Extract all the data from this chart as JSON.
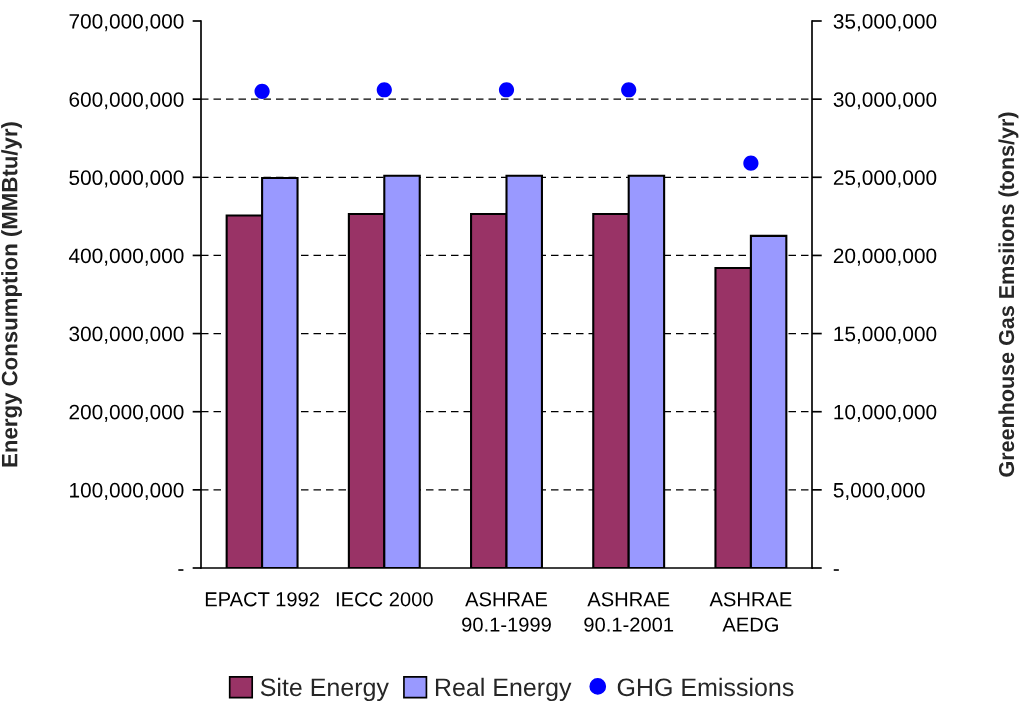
{
  "chart_data": {
    "type": "bar",
    "categories": [
      "EPACT 1992",
      "IECC 2000",
      "ASHRAE\n90.1-1999",
      "ASHRAE\n90.1-2001",
      "ASHRAE\nAEDG"
    ],
    "series": [
      {
        "name": "Site Energy",
        "color": "#993366",
        "values": [
          451000000,
          453000000,
          453000000,
          453000000,
          384000000
        ]
      },
      {
        "name": "Real Energy",
        "color": "#9999ff",
        "values": [
          499000000,
          502000000,
          502000000,
          502000000,
          425000000
        ]
      },
      {
        "name": "GHG Emissions",
        "type": "scatter",
        "axis": "y2",
        "color": "#0000ff",
        "marker": "circle",
        "values": [
          30500000,
          30600000,
          30600000,
          30600000,
          25900000
        ]
      }
    ],
    "ylabel": "Energy Consumption (MMBtu/yr)",
    "y2label": "Greenhouse Gas Emsiions (tons/yr)",
    "ylim": [
      0,
      700000000
    ],
    "yticks": [
      {
        "value": 0,
        "label": "-"
      },
      {
        "value": 100000000,
        "label": "100,000,000"
      },
      {
        "value": 200000000,
        "label": "200,000,000"
      },
      {
        "value": 300000000,
        "label": "300,000,000"
      },
      {
        "value": 400000000,
        "label": "400,000,000"
      },
      {
        "value": 500000000,
        "label": "500,000,000"
      },
      {
        "value": 600000000,
        "label": "600,000,000"
      },
      {
        "value": 700000000,
        "label": "700,000,000"
      }
    ],
    "y2lim": [
      0,
      35000000
    ],
    "y2ticks": [
      {
        "value": 0,
        "label": "-"
      },
      {
        "value": 5000000,
        "label": "5,000,000"
      },
      {
        "value": 10000000,
        "label": "10,000,000"
      },
      {
        "value": 15000000,
        "label": "15,000,000"
      },
      {
        "value": 20000000,
        "label": "20,000,000"
      },
      {
        "value": 25000000,
        "label": "25,000,000"
      },
      {
        "value": 30000000,
        "label": "30,000,000"
      },
      {
        "value": 35000000,
        "label": "35,000,000"
      }
    ],
    "grid": "y",
    "legend": "bottom"
  }
}
